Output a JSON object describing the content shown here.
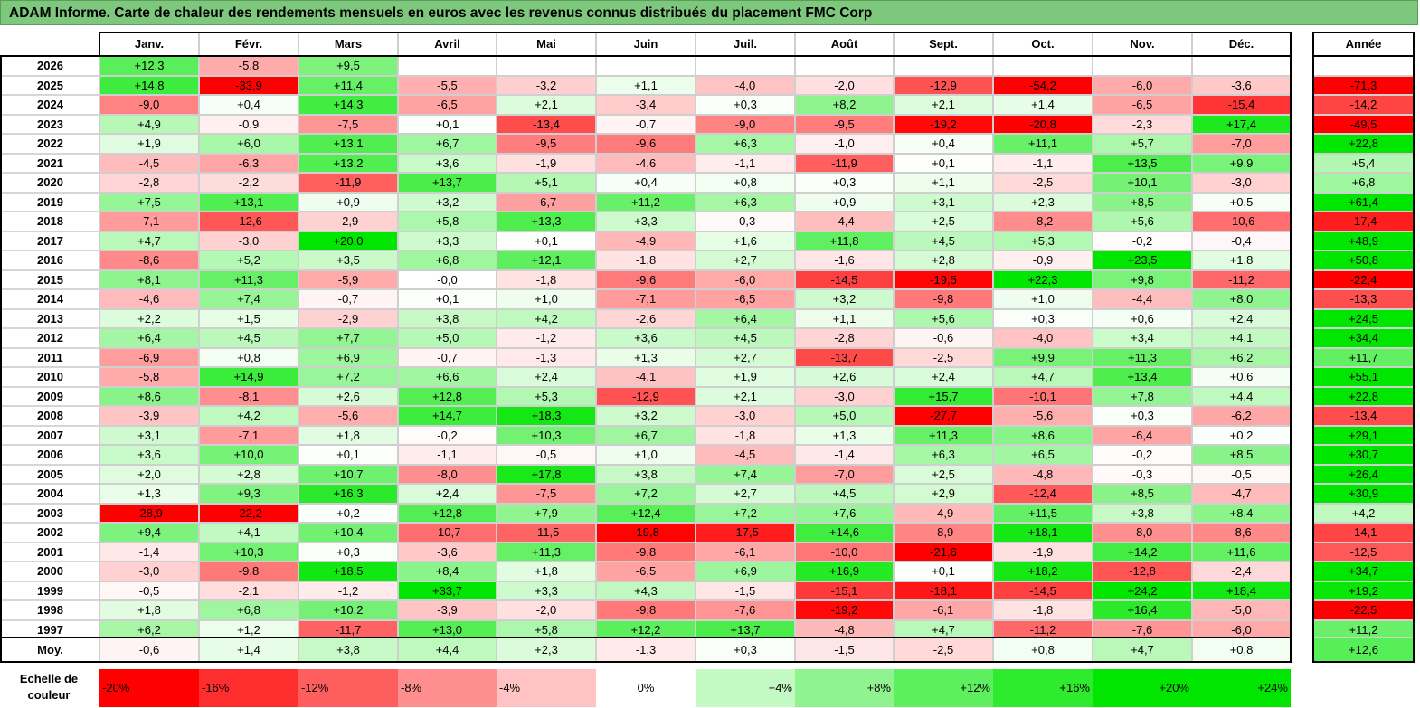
{
  "title": "ADAM Informe. Carte de chaleur des rendements mensuels en euros avec les revenus connus distribués du placement FMC Corp",
  "chart_data": {
    "type": "heatmap",
    "months": [
      "Janv.",
      "Févr.",
      "Mars",
      "Avril",
      "Mai",
      "Juin",
      "Juil.",
      "Août",
      "Sept.",
      "Oct.",
      "Nov.",
      "Déc."
    ],
    "year_col_label": "Année",
    "rows": [
      {
        "year": "2026",
        "values": [
          "+12,3",
          "-5,8",
          "+9,5",
          "",
          "",
          "",
          "",
          "",
          "",
          "",
          "",
          ""
        ],
        "total": ""
      },
      {
        "year": "2025",
        "values": [
          "+14,8",
          "-33,9",
          "+11,4",
          "-5,5",
          "-3,2",
          "+1,1",
          "-4,0",
          "-2,0",
          "-12,9",
          "-54,2",
          "-6,0",
          "-3,6"
        ],
        "total": "-71,3"
      },
      {
        "year": "2024",
        "values": [
          "-9,0",
          "+0,4",
          "+14,3",
          "-6,5",
          "+2,1",
          "-3,4",
          "+0,3",
          "+8,2",
          "+2,1",
          "+1,4",
          "-6,5",
          "-15,4"
        ],
        "total": "-14,2"
      },
      {
        "year": "2023",
        "values": [
          "+4,9",
          "-0,9",
          "-7,5",
          "+0,1",
          "-13,4",
          "-0,7",
          "-9,0",
          "-9,5",
          "-19,2",
          "-20,8",
          "-2,3",
          "+17,4"
        ],
        "total": "-49,5"
      },
      {
        "year": "2022",
        "values": [
          "+1,9",
          "+6,0",
          "+13,1",
          "+6,7",
          "-9,5",
          "-9,6",
          "+6,3",
          "-1,0",
          "+0,4",
          "+11,1",
          "+5,7",
          "-7,0"
        ],
        "total": "+22,8"
      },
      {
        "year": "2021",
        "values": [
          "-4,5",
          "-6,3",
          "+13,2",
          "+3,6",
          "-1,9",
          "-4,6",
          "-1,1",
          "-11,9",
          "+0,1",
          "-1,1",
          "+13,5",
          "+9,9"
        ],
        "total": "+5,4"
      },
      {
        "year": "2020",
        "values": [
          "-2,8",
          "-2,2",
          "-11,9",
          "+13,7",
          "+5,1",
          "+0,4",
          "+0,8",
          "+0,3",
          "+1,1",
          "-2,5",
          "+10,1",
          "-3,0"
        ],
        "total": "+6,8"
      },
      {
        "year": "2019",
        "values": [
          "+7,5",
          "+13,1",
          "+0,9",
          "+3,2",
          "-6,7",
          "+11,2",
          "+6,3",
          "+0,9",
          "+3,1",
          "+2,3",
          "+8,5",
          "+0,5"
        ],
        "total": "+61,4"
      },
      {
        "year": "2018",
        "values": [
          "-7,1",
          "-12,6",
          "-2,9",
          "+5,8",
          "+13,3",
          "+3,3",
          "-0,3",
          "-4,4",
          "+2,5",
          "-8,2",
          "+5,6",
          "-10,6"
        ],
        "total": "-17,4"
      },
      {
        "year": "2017",
        "values": [
          "+4,7",
          "-3,0",
          "+20,0",
          "+3,3",
          "+0,1",
          "-4,9",
          "+1,6",
          "+11,8",
          "+4,5",
          "+5,3",
          "-0,2",
          "-0,4"
        ],
        "total": "+48,9"
      },
      {
        "year": "2016",
        "values": [
          "-8,6",
          "+5,2",
          "+3,5",
          "+6,8",
          "+12,1",
          "-1,8",
          "+2,7",
          "-1,6",
          "+2,8",
          "-0,9",
          "+23,5",
          "+1,8"
        ],
        "total": "+50,8"
      },
      {
        "year": "2015",
        "values": [
          "+8,1",
          "+11,3",
          "-5,9",
          "-0,0",
          "-1,8",
          "-9,6",
          "-6,0",
          "-14,5",
          "-19,5",
          "+22,3",
          "+9,8",
          "-11,2"
        ],
        "total": "-22,4"
      },
      {
        "year": "2014",
        "values": [
          "-4,6",
          "+7,4",
          "-0,7",
          "+0,1",
          "+1,0",
          "-7,1",
          "-6,5",
          "+3,2",
          "-9,8",
          "+1,0",
          "-4,4",
          "+8,0"
        ],
        "total": "-13,3"
      },
      {
        "year": "2013",
        "values": [
          "+2,2",
          "+1,5",
          "-2,9",
          "+3,8",
          "+4,2",
          "-2,6",
          "+6,4",
          "+1,1",
          "+5,6",
          "+0,3",
          "+0,6",
          "+2,4"
        ],
        "total": "+24,5"
      },
      {
        "year": "2012",
        "values": [
          "+6,4",
          "+4,5",
          "+7,7",
          "+5,0",
          "-1,2",
          "+3,6",
          "+4,5",
          "-2,8",
          "-0,6",
          "-4,0",
          "+3,4",
          "+4,1"
        ],
        "total": "+34,4"
      },
      {
        "year": "2011",
        "values": [
          "-6,9",
          "+0,8",
          "+6,9",
          "-0,7",
          "-1,3",
          "+1,3",
          "+2,7",
          "-13,7",
          "-2,5",
          "+9,9",
          "+11,3",
          "+6,2"
        ],
        "total": "+11,7"
      },
      {
        "year": "2010",
        "values": [
          "-5,8",
          "+14,9",
          "+7,2",
          "+6,6",
          "+2,4",
          "-4,1",
          "+1,9",
          "+2,6",
          "+2,4",
          "+4,7",
          "+13,4",
          "+0,6"
        ],
        "total": "+55,1"
      },
      {
        "year": "2009",
        "values": [
          "+8,6",
          "-8,1",
          "+2,6",
          "+12,8",
          "+5,3",
          "-12,9",
          "+2,1",
          "-3,0",
          "+15,7",
          "-10,1",
          "+7,8",
          "+4,4"
        ],
        "total": "+22,8"
      },
      {
        "year": "2008",
        "values": [
          "-3,9",
          "+4,2",
          "-5,6",
          "+14,7",
          "+18,3",
          "+3,2",
          "-3,0",
          "+5,0",
          "-27,7",
          "-5,6",
          "+0,3",
          "-6,2"
        ],
        "total": "-13,4"
      },
      {
        "year": "2007",
        "values": [
          "+3,1",
          "-7,1",
          "+1,8",
          "-0,2",
          "+10,3",
          "+6,7",
          "-1,8",
          "+1,3",
          "+11,3",
          "+8,6",
          "-6,4",
          "+0,2"
        ],
        "total": "+29,1"
      },
      {
        "year": "2006",
        "values": [
          "+3,6",
          "+10,0",
          "+0,1",
          "-1,1",
          "-0,5",
          "+1,0",
          "-4,5",
          "-1,4",
          "+6,3",
          "+6,5",
          "-0,2",
          "+8,5"
        ],
        "total": "+30,7"
      },
      {
        "year": "2005",
        "values": [
          "+2,0",
          "+2,8",
          "+10,7",
          "-8,0",
          "+17,8",
          "+3,8",
          "+7,4",
          "-7,0",
          "+2,5",
          "-4,8",
          "-0,3",
          "-0,5"
        ],
        "total": "+26,4"
      },
      {
        "year": "2004",
        "values": [
          "+1,3",
          "+9,3",
          "+16,3",
          "+2,4",
          "-7,5",
          "+7,2",
          "+2,7",
          "+4,5",
          "+2,9",
          "-12,4",
          "+8,5",
          "-4,7"
        ],
        "total": "+30,9"
      },
      {
        "year": "2003",
        "values": [
          "-28,9",
          "-22,2",
          "+0,2",
          "+12,8",
          "+7,9",
          "+12,4",
          "+7,2",
          "+7,6",
          "-4,9",
          "+11,5",
          "+3,8",
          "+8,4"
        ],
        "total": "+4,2"
      },
      {
        "year": "2002",
        "values": [
          "+9,4",
          "+4,1",
          "+10,4",
          "-10,7",
          "-11,5",
          "-19,8",
          "-17,5",
          "+14,6",
          "-8,9",
          "+18,1",
          "-8,0",
          "-8,6"
        ],
        "total": "-14,1"
      },
      {
        "year": "2001",
        "values": [
          "-1,4",
          "+10,3",
          "+0,3",
          "-3,6",
          "+11,3",
          "-9,8",
          "-6,1",
          "-10,0",
          "-21,6",
          "-1,9",
          "+14,2",
          "+11,6"
        ],
        "total": "-12,5"
      },
      {
        "year": "2000",
        "values": [
          "-3,0",
          "-9,8",
          "+18,5",
          "+8,4",
          "+1,8",
          "-6,5",
          "+6,9",
          "+16,9",
          "+0,1",
          "+18,2",
          "-12,8",
          "-2,4"
        ],
        "total": "+34,7"
      },
      {
        "year": "1999",
        "values": [
          "-0,5",
          "-2,1",
          "-1,2",
          "+33,7",
          "+3,3",
          "+4,3",
          "-1,5",
          "-15,1",
          "-18,1",
          "-14,5",
          "+24,2",
          "+18,4"
        ],
        "total": "+19,2"
      },
      {
        "year": "1998",
        "values": [
          "+1,8",
          "+6,8",
          "+10,2",
          "-3,9",
          "-2,0",
          "-9,8",
          "-7,6",
          "-19,2",
          "-6,1",
          "-1,8",
          "+16,4",
          "-5,0"
        ],
        "total": "-22,5"
      },
      {
        "year": "1997",
        "values": [
          "+6,2",
          "+1,2",
          "-11,7",
          "+13,0",
          "+5,8",
          "+12,2",
          "+13,7",
          "-4,8",
          "+4,7",
          "-11,2",
          "-7,6",
          "-6,0"
        ],
        "total": "+11,2"
      }
    ],
    "average": {
      "label": "Moy.",
      "values": [
        "-0,6",
        "+1,4",
        "+3,8",
        "+4,4",
        "+2,3",
        "-1,3",
        "+0,3",
        "-1,5",
        "-2,5",
        "+0,8",
        "+4,7",
        "+0,8"
      ],
      "total": "+12,6"
    },
    "scale": {
      "label_lines": [
        "Echelle de",
        "couleur"
      ],
      "stops": [
        "-20%",
        "-16%",
        "-12%",
        "-8%",
        "-4%",
        "0%",
        "+4%",
        "+8%",
        "+12%",
        "+16%",
        "+20%",
        "+24%"
      ],
      "stop_values": [
        -20,
        -16,
        -12,
        -8,
        -4,
        0,
        4,
        8,
        12,
        16,
        20,
        24
      ]
    },
    "colors": {
      "negative": "#ff0000",
      "positive": "#00e600",
      "neutral": "#ffffff",
      "title_bg": "#7dc87d"
    }
  }
}
